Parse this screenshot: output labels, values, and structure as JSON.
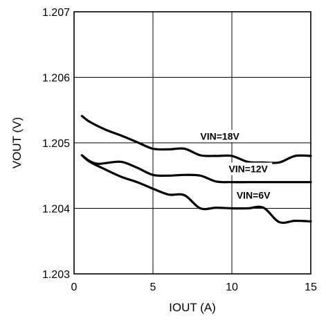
{
  "chart_data": {
    "type": "line",
    "title": "",
    "xlabel": "IOUT  (A)",
    "ylabel": "VOUT  (V)",
    "xlim": [
      0,
      15
    ],
    "ylim": [
      1.203,
      1.207
    ],
    "x_ticks": [
      "0",
      "5",
      "10",
      "15"
    ],
    "y_ticks": [
      "1.203",
      "1.204",
      "1.205",
      "1.206",
      "1.207"
    ],
    "grid": true,
    "legend": "none",
    "series": [
      {
        "name": "VIN=18V",
        "x": [
          0.5,
          1.0,
          2.0,
          3.0,
          4.0,
          5.0,
          6.0,
          7.0,
          8.0,
          9.0,
          10.0,
          11.0,
          12.0,
          13.0,
          14.0,
          15.0
        ],
        "y": [
          1.20541,
          1.20532,
          1.2052,
          1.20511,
          1.20501,
          1.20491,
          1.2049,
          1.20491,
          1.20481,
          1.2048,
          1.2048,
          1.20471,
          1.2047,
          1.2047,
          1.2048,
          1.2048
        ]
      },
      {
        "name": "VIN=12V",
        "x": [
          0.5,
          1.0,
          1.5,
          2.0,
          3.0,
          4.0,
          5.0,
          6.0,
          7.0,
          8.0,
          9.0,
          10.0,
          11.0,
          12.0,
          13.0,
          14.0,
          15.0
        ],
        "y": [
          1.20481,
          1.20472,
          1.20468,
          1.20469,
          1.20471,
          1.20462,
          1.20451,
          1.2045,
          1.20451,
          1.2045,
          1.20441,
          1.2044,
          1.2044,
          1.2044,
          1.2044,
          1.2044,
          1.2044
        ]
      },
      {
        "name": "VIN=6V",
        "x": [
          0.5,
          1.0,
          2.0,
          3.0,
          4.0,
          5.0,
          6.0,
          7.0,
          8.0,
          9.0,
          10.0,
          11.0,
          12.0,
          13.0,
          14.0,
          15.0
        ],
        "y": [
          1.20481,
          1.20471,
          1.20459,
          1.20448,
          1.2044,
          1.2043,
          1.20421,
          1.2042,
          1.204,
          1.20401,
          1.204,
          1.204,
          1.20401,
          1.20379,
          1.20381,
          1.2038
        ]
      }
    ],
    "annotations": [
      {
        "text": "VIN=18V",
        "x": 8.0,
        "y": 1.20505
      },
      {
        "text": "VIN=12V",
        "x": 9.8,
        "y": 1.20455
      },
      {
        "text": "VIN=6V",
        "x": 10.3,
        "y": 1.20415
      }
    ]
  }
}
